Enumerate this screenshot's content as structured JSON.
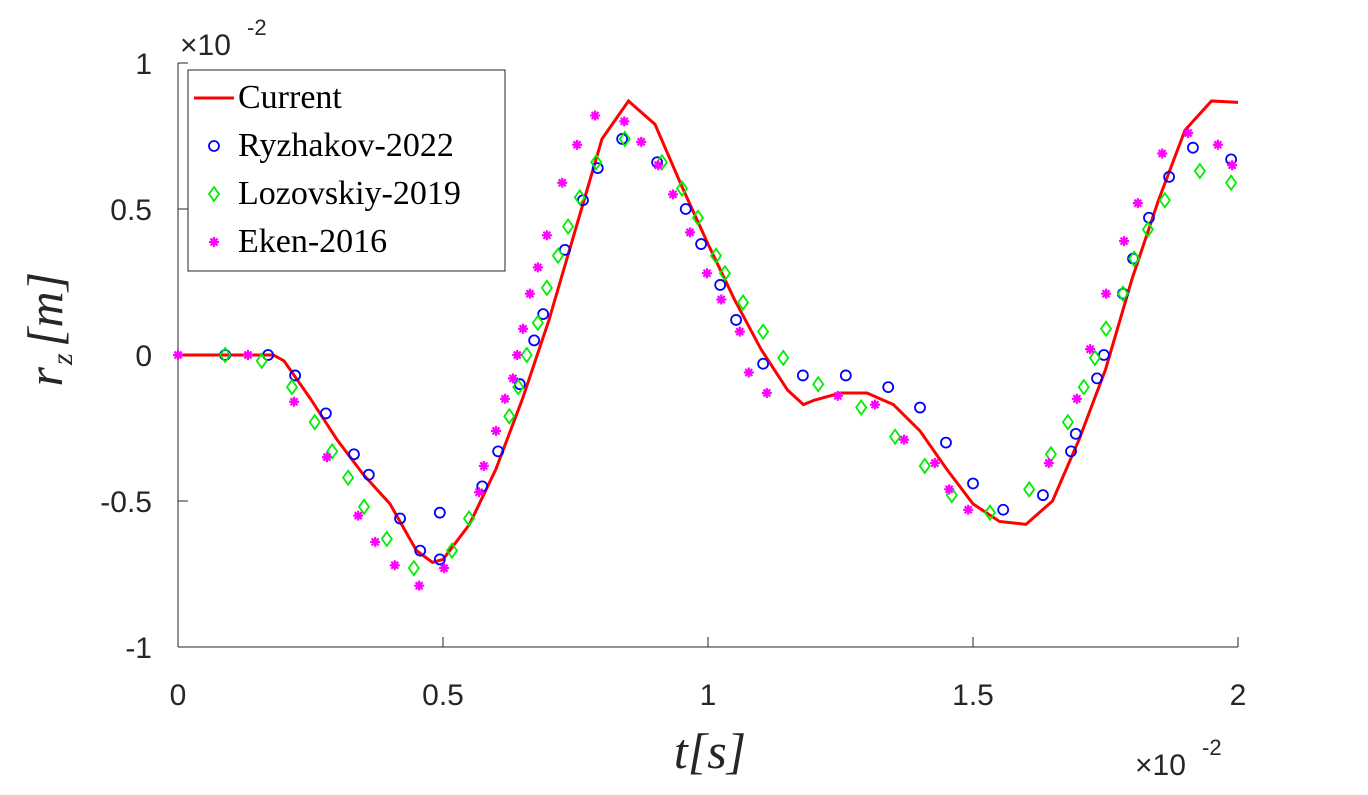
{
  "chart_data": {
    "type": "line",
    "xlabel": "t[s]",
    "ylabel": [
      "r",
      "z",
      "[m]"
    ],
    "x_multiplier": {
      "base": "×10",
      "power": "-2"
    },
    "y_multiplier": {
      "base": "×10",
      "power": "-2"
    },
    "xlim": [
      0,
      2
    ],
    "xticks": [
      0,
      0.5,
      1,
      1.5,
      2
    ],
    "ylim": [
      -1,
      1
    ],
    "yticks": [
      -1,
      -0.5,
      0,
      0.5,
      1
    ],
    "grid": false,
    "legend": "upper left",
    "series": [
      {
        "name": "Current",
        "color": "#ff0000",
        "marker": "none",
        "x": [
          0,
          0.1,
          0.18,
          0.2,
          0.25,
          0.3,
          0.35,
          0.4,
          0.45,
          0.48,
          0.5,
          0.55,
          0.6,
          0.65,
          0.7,
          0.75,
          0.8,
          0.85,
          0.9,
          0.95,
          1.0,
          1.05,
          1.1,
          1.15,
          1.18,
          1.2,
          1.25,
          1.3,
          1.35,
          1.4,
          1.45,
          1.5,
          1.55,
          1.6,
          1.65,
          1.7,
          1.75,
          1.8,
          1.85,
          1.9,
          1.95,
          2.0
        ],
        "values": [
          0,
          0,
          0,
          -0.02,
          -0.15,
          -0.29,
          -0.41,
          -0.51,
          -0.67,
          -0.71,
          -0.7,
          -0.58,
          -0.39,
          -0.15,
          0.12,
          0.43,
          0.74,
          0.87,
          0.79,
          0.58,
          0.38,
          0.19,
          0.02,
          -0.12,
          -0.17,
          -0.155,
          -0.13,
          -0.13,
          -0.17,
          -0.26,
          -0.39,
          -0.51,
          -0.57,
          -0.58,
          -0.5,
          -0.29,
          -0.05,
          0.26,
          0.53,
          0.77,
          0.87,
          0.865
        ]
      },
      {
        "name": "Ryzhakov-2022",
        "color": "#0000ff",
        "marker": "o",
        "x": [
          0.089,
          0.17,
          0.221,
          0.279,
          0.332,
          0.36,
          0.419,
          0.457,
          0.494,
          0.494,
          0.574,
          0.604,
          0.645,
          0.672,
          0.689,
          0.73,
          0.764,
          0.792,
          0.838,
          0.904,
          0.958,
          0.987,
          1.023,
          1.053,
          1.104,
          1.179,
          1.26,
          1.34,
          1.4,
          1.449,
          1.5,
          1.557,
          1.632,
          1.685,
          1.694,
          1.734,
          1.747,
          1.783,
          1.802,
          1.832,
          1.87,
          1.915,
          1.987
        ],
        "values": [
          0,
          0,
          -0.07,
          -0.2,
          -0.34,
          -0.41,
          -0.56,
          -0.67,
          -0.7,
          -0.54,
          -0.45,
          -0.33,
          -0.1,
          0.05,
          0.14,
          0.36,
          0.53,
          0.64,
          0.74,
          0.66,
          0.5,
          0.38,
          0.24,
          0.12,
          -0.03,
          -0.07,
          -0.07,
          -0.11,
          -0.18,
          -0.3,
          -0.44,
          -0.53,
          -0.48,
          -0.33,
          -0.27,
          -0.08,
          0,
          0.21,
          0.33,
          0.47,
          0.61,
          0.71,
          0.67
        ]
      },
      {
        "name": "Lozovskiy-2019",
        "color": "#00ee00",
        "marker": "d",
        "x": [
          0.089,
          0.158,
          0.215,
          0.258,
          0.291,
          0.321,
          0.351,
          0.394,
          0.445,
          0.517,
          0.549,
          0.625,
          0.642,
          0.658,
          0.679,
          0.696,
          0.717,
          0.736,
          0.758,
          0.789,
          0.843,
          0.913,
          0.951,
          0.981,
          1.015,
          1.032,
          1.066,
          1.104,
          1.142,
          1.208,
          1.289,
          1.353,
          1.409,
          1.46,
          1.532,
          1.606,
          1.647,
          1.679,
          1.709,
          1.73,
          1.751,
          1.783,
          1.804,
          1.83,
          1.862,
          1.928,
          1.987
        ],
        "values": [
          0,
          -0.02,
          -0.11,
          -0.23,
          -0.33,
          -0.42,
          -0.52,
          -0.63,
          -0.73,
          -0.67,
          -0.56,
          -0.21,
          -0.11,
          0,
          0.11,
          0.23,
          0.34,
          0.44,
          0.54,
          0.66,
          0.74,
          0.66,
          0.57,
          0.47,
          0.34,
          0.28,
          0.18,
          0.08,
          -0.01,
          -0.1,
          -0.18,
          -0.28,
          -0.38,
          -0.48,
          -0.54,
          -0.46,
          -0.34,
          -0.23,
          -0.11,
          -0.01,
          0.09,
          0.21,
          0.33,
          0.43,
          0.53,
          0.63,
          0.59
        ]
      },
      {
        "name": "Eken-2016",
        "color": "#ff00ff",
        "marker": "*",
        "x": [
          0,
          0.132,
          0.219,
          0.281,
          0.34,
          0.372,
          0.409,
          0.455,
          0.502,
          0.568,
          0.577,
          0.6,
          0.617,
          0.632,
          0.64,
          0.651,
          0.664,
          0.679,
          0.696,
          0.725,
          0.753,
          0.787,
          0.842,
          0.874,
          0.906,
          0.934,
          0.966,
          0.998,
          1.025,
          1.06,
          1.077,
          1.111,
          1.245,
          1.315,
          1.37,
          1.428,
          1.455,
          1.491,
          1.643,
          1.696,
          1.721,
          1.751,
          1.785,
          1.811,
          1.857,
          1.906,
          1.962,
          1.989
        ],
        "values": [
          0,
          0,
          -0.16,
          -0.35,
          -0.55,
          -0.64,
          -0.72,
          -0.79,
          -0.73,
          -0.47,
          -0.38,
          -0.26,
          -0.15,
          -0.08,
          0,
          0.09,
          0.21,
          0.3,
          0.41,
          0.59,
          0.72,
          0.82,
          0.8,
          0.73,
          0.65,
          0.55,
          0.42,
          0.28,
          0.19,
          0.08,
          -0.06,
          -0.13,
          -0.14,
          -0.17,
          -0.29,
          -0.37,
          -0.46,
          -0.53,
          -0.37,
          -0.15,
          0.02,
          0.21,
          0.39,
          0.52,
          0.69,
          0.76,
          0.72,
          0.65
        ]
      }
    ]
  }
}
